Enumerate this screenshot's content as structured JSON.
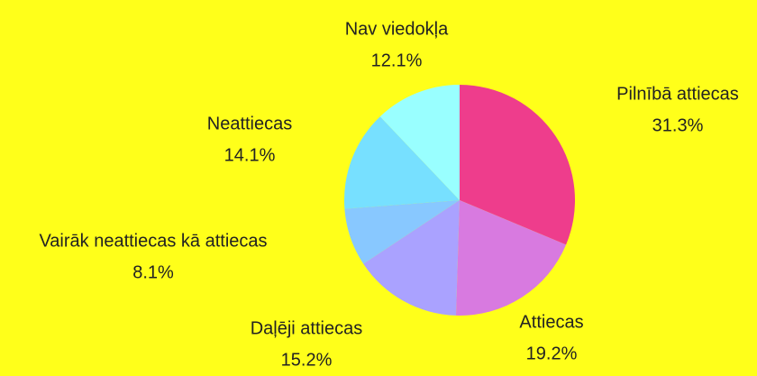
{
  "chart_data": {
    "type": "pie",
    "categories": [
      "Pilnībā attiecas",
      "Attiecas",
      "Daļēji attiecas",
      "Vairāk neattiecas kā attiecas",
      "Neattiecas",
      "Nav viedokļa"
    ],
    "values": [
      31.3,
      19.2,
      15.2,
      8.1,
      14.1,
      12.1
    ],
    "value_labels": [
      "31.3%",
      "19.2%",
      "15.2%",
      "8.1%",
      "14.1%",
      "12.1%"
    ],
    "colors": [
      "#ee3d8c",
      "#d87ae0",
      "#aaa2ff",
      "#88c8ff",
      "#77e0ff",
      "#99ffff"
    ]
  }
}
